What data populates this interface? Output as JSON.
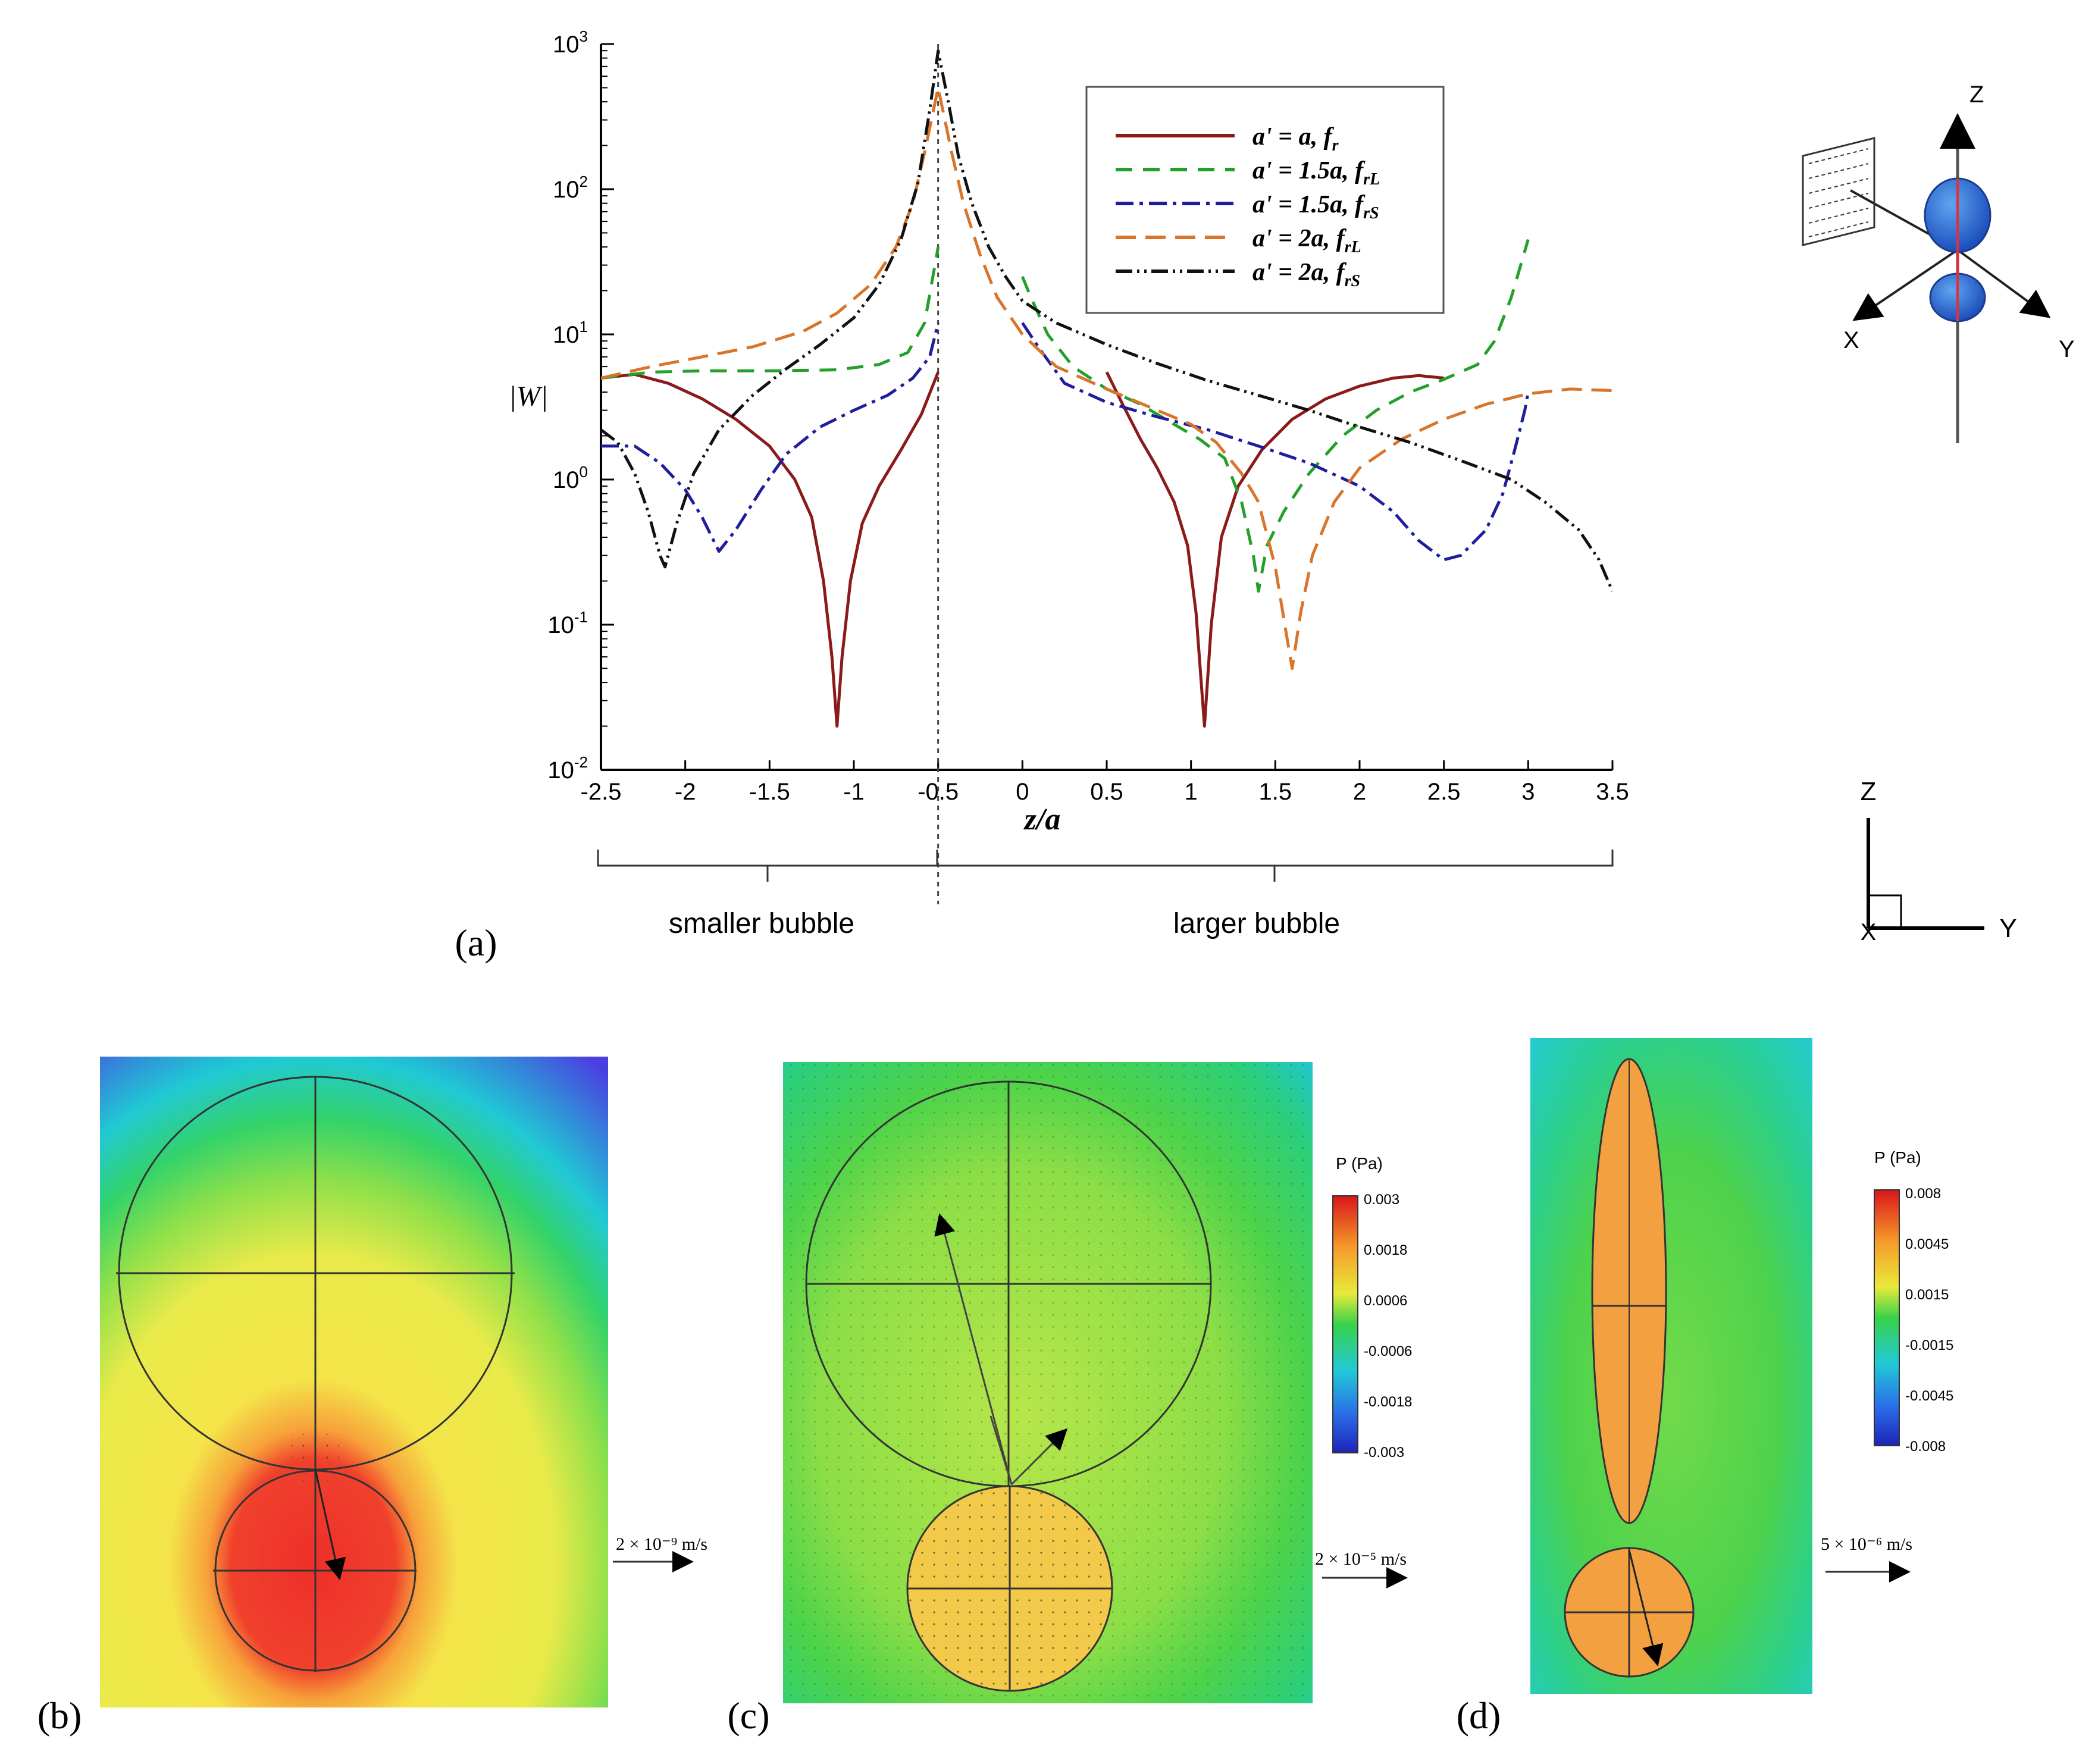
{
  "chart_data": {
    "type": "line",
    "title": "",
    "xlabel": "z/a",
    "ylabel": "|W|",
    "xlim": [
      -2.5,
      3.5
    ],
    "ylim": [
      0.01,
      1000
    ],
    "yscale": "log",
    "x_ticks": [
      "-2.5",
      "-2",
      "-1.5",
      "-1",
      "-0.5",
      "0",
      "0.5",
      "1",
      "1.5",
      "2",
      "2.5",
      "3",
      "3.5"
    ],
    "y_ticks": [
      {
        "base": "10",
        "exp": "3"
      },
      {
        "base": "10",
        "exp": "2"
      },
      {
        "base": "10",
        "exp": "1"
      },
      {
        "base": "10",
        "exp": "0"
      },
      {
        "base": "10",
        "exp": "-1"
      },
      {
        "base": "10",
        "exp": "-2"
      }
    ],
    "legend_position": "top-right",
    "series": [
      {
        "name": "a' = a, f_r",
        "legend_main": "a' = a, f",
        "legend_sub": "r",
        "color": "#8b1a1a",
        "dash": "solid",
        "segments": [
          [
            [
              -2.5,
              5.0
            ],
            [
              -2.3,
              5.3
            ],
            [
              -2.1,
              4.6
            ],
            [
              -1.9,
              3.6
            ],
            [
              -1.7,
              2.6
            ],
            [
              -1.5,
              1.7
            ],
            [
              -1.35,
              1.0
            ],
            [
              -1.25,
              0.55
            ],
            [
              -1.18,
              0.2
            ],
            [
              -1.13,
              0.06
            ],
            [
              -1.1,
              0.02
            ],
            [
              -1.07,
              0.06
            ],
            [
              -1.02,
              0.2
            ],
            [
              -0.95,
              0.5
            ],
            [
              -0.85,
              0.9
            ],
            [
              -0.72,
              1.6
            ],
            [
              -0.6,
              2.8
            ],
            [
              -0.5,
              5.5
            ]
          ],
          [
            [
              0.5,
              5.5
            ],
            [
              0.6,
              3.2
            ],
            [
              0.7,
              1.9
            ],
            [
              0.8,
              1.2
            ],
            [
              0.9,
              0.7
            ],
            [
              0.98,
              0.35
            ],
            [
              1.03,
              0.12
            ],
            [
              1.08,
              0.02
            ],
            [
              1.12,
              0.1
            ],
            [
              1.18,
              0.4
            ],
            [
              1.28,
              0.9
            ],
            [
              1.42,
              1.6
            ],
            [
              1.6,
              2.6
            ],
            [
              1.8,
              3.6
            ],
            [
              2.0,
              4.4
            ],
            [
              2.2,
              5.0
            ],
            [
              2.35,
              5.2
            ],
            [
              2.5,
              5.0
            ]
          ]
        ]
      },
      {
        "name": "a' = 1.5a, f_rL",
        "legend_main": "a' = 1.5a, f",
        "legend_sub": "rL",
        "color": "#22a02a",
        "dash": "28,18",
        "segments": [
          [
            [
              -2.5,
              5.0
            ],
            [
              -2.2,
              5.5
            ],
            [
              -1.9,
              5.6
            ],
            [
              -1.5,
              5.6
            ],
            [
              -1.1,
              5.7
            ],
            [
              -0.85,
              6.2
            ],
            [
              -0.68,
              7.5
            ],
            [
              -0.58,
              12
            ],
            [
              -0.5,
              40
            ]
          ],
          [
            [
              0,
              25
            ],
            [
              0.05,
              18
            ],
            [
              0.15,
              10
            ],
            [
              0.3,
              6.0
            ],
            [
              0.5,
              4.2
            ],
            [
              0.7,
              3.3
            ],
            [
              0.9,
              2.4
            ],
            [
              1.05,
              1.9
            ],
            [
              1.2,
              1.4
            ],
            [
              1.3,
              0.7
            ],
            [
              1.37,
              0.3
            ],
            [
              1.4,
              0.17
            ],
            [
              1.45,
              0.35
            ],
            [
              1.55,
              0.6
            ],
            [
              1.7,
              1.1
            ],
            [
              1.9,
              2.0
            ],
            [
              2.1,
              3.0
            ],
            [
              2.3,
              4.0
            ],
            [
              2.5,
              4.9
            ],
            [
              2.7,
              6.2
            ],
            [
              2.8,
              9.0
            ],
            [
              2.9,
              18
            ],
            [
              3.0,
              45
            ]
          ]
        ]
      },
      {
        "name": "a' = 1.5a, f_rS",
        "legend_main": "a' = 1.5a, f",
        "legend_sub": "rS",
        "color": "#1e1e9c",
        "dash": "30,10,6,10",
        "segments": [
          [
            [
              -2.5,
              1.7
            ],
            [
              -2.3,
              1.7
            ],
            [
              -2.15,
              1.3
            ],
            [
              -2.0,
              0.85
            ],
            [
              -1.9,
              0.55
            ],
            [
              -1.8,
              0.32
            ],
            [
              -1.7,
              0.45
            ],
            [
              -1.55,
              0.85
            ],
            [
              -1.4,
              1.5
            ],
            [
              -1.2,
              2.3
            ],
            [
              -1.0,
              3.0
            ],
            [
              -0.8,
              3.8
            ],
            [
              -0.65,
              5.0
            ],
            [
              -0.55,
              7.0
            ],
            [
              -0.5,
              12
            ]
          ],
          [
            [
              0,
              12
            ],
            [
              0.1,
              8
            ],
            [
              0.25,
              4.6
            ],
            [
              0.5,
              3.4
            ],
            [
              0.8,
              2.7
            ],
            [
              1.1,
              2.2
            ],
            [
              1.4,
              1.7
            ],
            [
              1.7,
              1.3
            ],
            [
              2.0,
              0.9
            ],
            [
              2.2,
              0.6
            ],
            [
              2.35,
              0.38
            ],
            [
              2.5,
              0.28
            ],
            [
              2.6,
              0.3
            ],
            [
              2.75,
              0.45
            ],
            [
              2.85,
              0.8
            ],
            [
              2.92,
              1.6
            ],
            [
              2.98,
              3.0
            ],
            [
              3.0,
              4.0
            ]
          ]
        ]
      },
      {
        "name": "a' = 2a, f_rL",
        "legend_main": "a' = 2a, f",
        "legend_sub": "rL",
        "color": "#d9752a",
        "dash": "34,16",
        "segments": [
          [
            [
              -2.5,
              5.0
            ],
            [
              -2.2,
              6.0
            ],
            [
              -1.9,
              7.0
            ],
            [
              -1.6,
              8.2
            ],
            [
              -1.3,
              10.5
            ],
            [
              -1.1,
              14
            ],
            [
              -0.9,
              22
            ],
            [
              -0.75,
              40
            ],
            [
              -0.65,
              80
            ],
            [
              -0.58,
              180
            ],
            [
              -0.5,
              500
            ],
            [
              -0.42,
              180
            ],
            [
              -0.35,
              80
            ],
            [
              -0.25,
              35
            ],
            [
              -0.15,
              18
            ],
            [
              0,
              10
            ],
            [
              0.2,
              6.0
            ],
            [
              0.5,
              4.2
            ],
            [
              0.8,
              3.0
            ],
            [
              1.0,
              2.4
            ],
            [
              1.15,
              1.8
            ],
            [
              1.3,
              1.1
            ],
            [
              1.4,
              0.7
            ],
            [
              1.5,
              0.25
            ],
            [
              1.57,
              0.08
            ],
            [
              1.6,
              0.05
            ],
            [
              1.65,
              0.12
            ],
            [
              1.72,
              0.3
            ],
            [
              1.85,
              0.7
            ],
            [
              2.0,
              1.2
            ],
            [
              2.25,
              1.9
            ],
            [
              2.5,
              2.6
            ],
            [
              2.75,
              3.3
            ],
            [
              3.0,
              3.9
            ],
            [
              3.25,
              4.2
            ],
            [
              3.5,
              4.1
            ]
          ]
        ]
      },
      {
        "name": "a' = 2a, f_rS",
        "legend_main": "a' = 2a, f",
        "legend_sub": "rS",
        "color": "#111111",
        "dash": "28,8,4,8,4,8",
        "segments": [
          [
            [
              -2.5,
              2.2
            ],
            [
              -2.4,
              1.8
            ],
            [
              -2.3,
              1.1
            ],
            [
              -2.22,
              0.6
            ],
            [
              -2.15,
              0.3
            ],
            [
              -2.12,
              0.25
            ],
            [
              -2.05,
              0.5
            ],
            [
              -1.95,
              1.1
            ],
            [
              -1.8,
              2.2
            ],
            [
              -1.6,
              3.8
            ],
            [
              -1.4,
              5.8
            ],
            [
              -1.2,
              8.5
            ],
            [
              -1.0,
              13
            ],
            [
              -0.85,
              22
            ],
            [
              -0.72,
              45
            ],
            [
              -0.62,
              110
            ],
            [
              -0.55,
              350
            ],
            [
              -0.5,
              900
            ],
            [
              -0.44,
              400
            ],
            [
              -0.38,
              170
            ],
            [
              -0.3,
              80
            ],
            [
              -0.2,
              40
            ],
            [
              -0.1,
              25
            ],
            [
              0,
              17
            ],
            [
              0.2,
              12
            ],
            [
              0.5,
              8.5
            ],
            [
              0.8,
              6.3
            ],
            [
              1.1,
              4.8
            ],
            [
              1.4,
              3.8
            ],
            [
              1.7,
              3.0
            ],
            [
              2.0,
              2.3
            ],
            [
              2.3,
              1.8
            ],
            [
              2.6,
              1.35
            ],
            [
              2.9,
              1.0
            ],
            [
              3.1,
              0.7
            ],
            [
              3.3,
              0.45
            ],
            [
              3.42,
              0.28
            ],
            [
              3.5,
              0.17
            ]
          ]
        ]
      }
    ],
    "vertical_marker": -0.5
  },
  "labels": {
    "panel_a": "(a)",
    "panel_b": "(b)",
    "panel_c": "(c)",
    "panel_d": "(d)",
    "smaller_bubble": "smaller bubble",
    "larger_bubble": "larger bubble"
  },
  "axes_3d": {
    "z": "Z",
    "x": "X",
    "y": "Y"
  },
  "axes_2d": {
    "z": "Z",
    "x": "X",
    "y": "Y"
  },
  "fields": {
    "colorbar_title": "P (Pa)",
    "panel_c_colorbar_ticks": [
      "0.003",
      "0.0018",
      "0.0006",
      "-0.0006",
      "-0.0018",
      "-0.003"
    ],
    "panel_d_colorbar_ticks": [
      "0.008",
      "0.0045",
      "0.0015",
      "-0.0015",
      "-0.0045",
      "-0.008"
    ],
    "panel_b_scale": "2 × 10⁻⁹ m/s",
    "panel_c_scale": "2 × 10⁻⁵ m/s",
    "panel_d_scale": "5 × 10⁻⁶ m/s"
  },
  "colors": {
    "red": "#ee3a2b",
    "orange": "#f39a3a",
    "yellow": "#f2e64a",
    "green": "#4fd34a",
    "cyan": "#22c9d0",
    "blue": "#3f58e0"
  }
}
